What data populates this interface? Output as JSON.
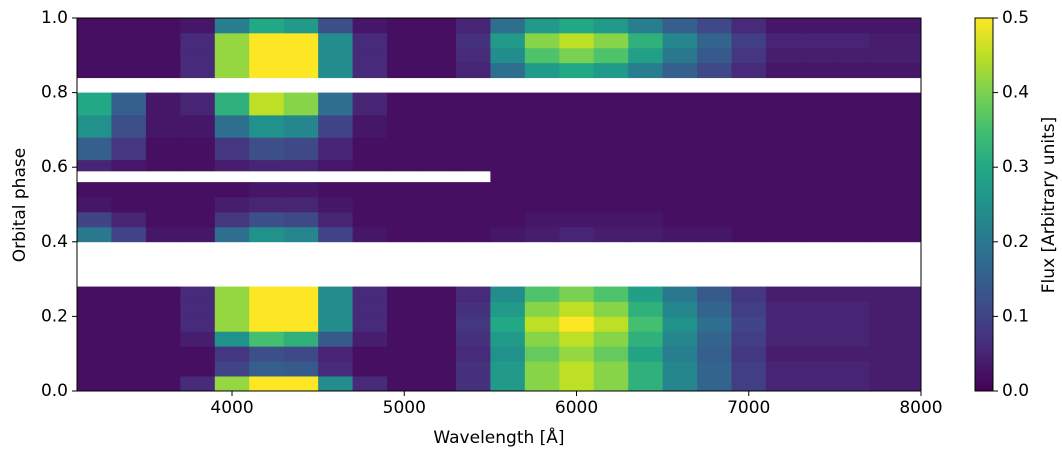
{
  "chart_data": {
    "type": "heatmap",
    "xlabel": "Wavelength [Å]",
    "ylabel": "Orbital phase",
    "colorbar_label": "Flux [Arbitrary units]",
    "colormap": "viridis",
    "xlim": [
      3100,
      8000
    ],
    "ylim": [
      0,
      1
    ],
    "xticks": [
      4000,
      5000,
      6000,
      7000,
      8000
    ],
    "yticks": [
      {
        "value": 0,
        "label": "0.0"
      },
      0.2,
      0.4,
      0.6,
      0.8,
      {
        "value": 1,
        "label": "1.0"
      }
    ],
    "clim": [
      0,
      0.5
    ],
    "cticks": [
      {
        "value": 0,
        "label": "0.0"
      },
      0.1,
      0.2,
      0.3,
      0.4,
      0.5
    ],
    "x_edges": [
      3100,
      3300,
      3500,
      3700,
      3900,
      4100,
      4300,
      4500,
      4700,
      4900,
      5100,
      5300,
      5500,
      5700,
      5900,
      6100,
      6300,
      6500,
      6700,
      6900,
      7100,
      7300,
      7500,
      7700,
      8000
    ],
    "y_edges": [
      0,
      0.04,
      0.08,
      0.12,
      0.16,
      0.2,
      0.24,
      0.28,
      0.4,
      0.44,
      0.48,
      0.52,
      0.56,
      0.59,
      0.62,
      0.68,
      0.74,
      0.8,
      0.84,
      0.88,
      0.92,
      0.96,
      1
    ],
    "values": [
      [
        0.02,
        0.02,
        0.02,
        0.06,
        0.42,
        0.6,
        0.54,
        0.24,
        0.06,
        0.02,
        0.02,
        0.07,
        0.27,
        0.41,
        0.45,
        0.41,
        0.32,
        0.23,
        0.16,
        0.09,
        0.05,
        0.05,
        0.05,
        0.04
      ],
      [
        0.02,
        0.02,
        0.02,
        0.02,
        0.1,
        0.15,
        0.14,
        0.06,
        0.02,
        0.02,
        0.02,
        0.07,
        0.27,
        0.41,
        0.45,
        0.41,
        0.32,
        0.23,
        0.16,
        0.09,
        0.05,
        0.05,
        0.05,
        0.04
      ],
      [
        0.02,
        0.02,
        0.02,
        0.02,
        0.08,
        0.12,
        0.11,
        0.05,
        0.02,
        0.02,
        0.02,
        0.06,
        0.25,
        0.38,
        0.42,
        0.38,
        0.29,
        0.21,
        0.15,
        0.08,
        0.04,
        0.04,
        0.04,
        0.04
      ],
      [
        0.02,
        0.02,
        0.02,
        0.04,
        0.25,
        0.35,
        0.32,
        0.14,
        0.04,
        0.02,
        0.02,
        0.07,
        0.27,
        0.41,
        0.45,
        0.41,
        0.32,
        0.23,
        0.16,
        0.09,
        0.05,
        0.05,
        0.05,
        0.04
      ],
      [
        0.02,
        0.02,
        0.02,
        0.06,
        0.42,
        0.6,
        0.54,
        0.24,
        0.06,
        0.02,
        0.02,
        0.08,
        0.3,
        0.45,
        0.5,
        0.45,
        0.35,
        0.25,
        0.18,
        0.1,
        0.05,
        0.05,
        0.05,
        0.04
      ],
      [
        0.02,
        0.02,
        0.02,
        0.06,
        0.42,
        0.6,
        0.54,
        0.24,
        0.06,
        0.02,
        0.02,
        0.07,
        0.27,
        0.41,
        0.45,
        0.41,
        0.32,
        0.23,
        0.16,
        0.09,
        0.05,
        0.05,
        0.05,
        0.04
      ],
      [
        0.02,
        0.02,
        0.02,
        0.06,
        0.42,
        0.6,
        0.54,
        0.24,
        0.06,
        0.02,
        0.02,
        0.06,
        0.24,
        0.36,
        0.4,
        0.36,
        0.28,
        0.2,
        0.14,
        0.08,
        0.04,
        0.04,
        0.04,
        0.04
      ],
      [
        null,
        null,
        null,
        null,
        null,
        null,
        null,
        null,
        null,
        null,
        null,
        null,
        null,
        null,
        null,
        null,
        null,
        null,
        null,
        null,
        null,
        null,
        null,
        null
      ],
      [
        0.2,
        0.1,
        0.03,
        0.03,
        0.18,
        0.25,
        0.23,
        0.1,
        0.03,
        0.02,
        0.02,
        0.02,
        0.03,
        0.04,
        0.05,
        0.04,
        0.04,
        0.03,
        0.03,
        0.02,
        0.02,
        0.02,
        0.02,
        0.02
      ],
      [
        0.1,
        0.05,
        0.02,
        0.02,
        0.08,
        0.12,
        0.11,
        0.05,
        0.02,
        0.02,
        0.02,
        0.02,
        0.02,
        0.03,
        0.03,
        0.03,
        0.03,
        0.02,
        0.02,
        0.02,
        0.02,
        0.02,
        0.02,
        0.02
      ],
      [
        0.03,
        0.02,
        0.02,
        0.02,
        0.04,
        0.05,
        0.05,
        0.03,
        0.02,
        0.02,
        0.02,
        0.02,
        0.02,
        0.02,
        0.02,
        0.02,
        0.02,
        0.02,
        0.02,
        0.02,
        0.02,
        0.02,
        0.02,
        0.02
      ],
      [
        0.02,
        0.02,
        0.02,
        0.02,
        0.02,
        0.03,
        0.03,
        0.02,
        0.02,
        0.02,
        0.02,
        0.02,
        0.02,
        0.02,
        0.02,
        0.02,
        0.02,
        0.02,
        0.02,
        0.02,
        0.02,
        0.02,
        0.02,
        0.02
      ],
      [
        null,
        null,
        null,
        null,
        null,
        null,
        null,
        null,
        null,
        null,
        null,
        null,
        0.02,
        0.02,
        0.02,
        0.02,
        0.02,
        0.02,
        0.02,
        0.02,
        0.02,
        0.02,
        0.02,
        0.02
      ],
      [
        0.05,
        0.03,
        0.02,
        0.02,
        0.04,
        0.05,
        0.05,
        0.03,
        0.02,
        0.02,
        0.02,
        0.02,
        0.02,
        0.02,
        0.02,
        0.02,
        0.02,
        0.02,
        0.02,
        0.02,
        0.02,
        0.02,
        0.02,
        0.02
      ],
      [
        0.15,
        0.08,
        0.02,
        0.02,
        0.08,
        0.12,
        0.11,
        0.05,
        0.02,
        0.02,
        0.02,
        0.02,
        0.02,
        0.02,
        0.02,
        0.02,
        0.02,
        0.02,
        0.02,
        0.02,
        0.02,
        0.02,
        0.02,
        0.02
      ],
      [
        0.25,
        0.12,
        0.03,
        0.03,
        0.18,
        0.25,
        0.23,
        0.1,
        0.03,
        0.02,
        0.02,
        0.02,
        0.02,
        0.02,
        0.02,
        0.02,
        0.02,
        0.02,
        0.02,
        0.02,
        0.02,
        0.02,
        0.02,
        0.02
      ],
      [
        0.3,
        0.15,
        0.03,
        0.05,
        0.32,
        0.45,
        0.41,
        0.18,
        0.05,
        0.02,
        0.02,
        0.02,
        0.02,
        0.02,
        0.02,
        0.02,
        0.02,
        0.02,
        0.02,
        0.02,
        0.02,
        0.02,
        0.02,
        0.02
      ],
      [
        null,
        null,
        null,
        null,
        null,
        null,
        null,
        null,
        null,
        null,
        null,
        null,
        null,
        null,
        null,
        null,
        null,
        null,
        null,
        null,
        null,
        null,
        null,
        null
      ],
      [
        0.02,
        0.02,
        0.02,
        0.06,
        0.42,
        0.6,
        0.54,
        0.24,
        0.06,
        0.02,
        0.02,
        0.05,
        0.18,
        0.27,
        0.3,
        0.27,
        0.21,
        0.15,
        0.11,
        0.06,
        0.03,
        0.03,
        0.03,
        0.03
      ],
      [
        0.02,
        0.02,
        0.02,
        0.06,
        0.42,
        0.6,
        0.54,
        0.24,
        0.06,
        0.02,
        0.02,
        0.06,
        0.24,
        0.36,
        0.4,
        0.36,
        0.28,
        0.2,
        0.14,
        0.08,
        0.04,
        0.04,
        0.04,
        0.04
      ],
      [
        0.02,
        0.02,
        0.02,
        0.06,
        0.42,
        0.6,
        0.54,
        0.24,
        0.06,
        0.02,
        0.02,
        0.07,
        0.27,
        0.41,
        0.45,
        0.41,
        0.32,
        0.23,
        0.16,
        0.09,
        0.05,
        0.05,
        0.05,
        0.04
      ],
      [
        0.02,
        0.02,
        0.02,
        0.03,
        0.21,
        0.3,
        0.27,
        0.12,
        0.03,
        0.02,
        0.02,
        0.05,
        0.18,
        0.27,
        0.3,
        0.27,
        0.21,
        0.15,
        0.11,
        0.06,
        0.03,
        0.03,
        0.03,
        0.03
      ]
    ]
  }
}
